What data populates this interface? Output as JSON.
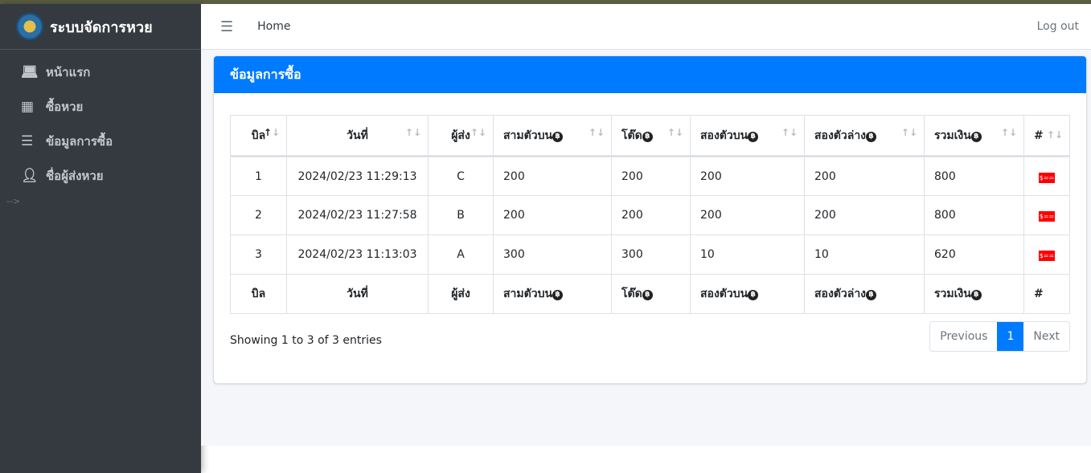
{
  "app": {
    "title": "ระบบจัดการหวย"
  },
  "sidebar": {
    "items": [
      {
        "label": "หน้าแรก",
        "icon": "laptop-icon"
      },
      {
        "label": "ซื้อหวย",
        "icon": "grid-icon"
      },
      {
        "label": "ข้อมูลการซื้อ",
        "icon": "list-icon"
      },
      {
        "label": "ชื่อผู้ส่งหวย",
        "icon": "user-graduate-icon"
      }
    ],
    "comment": "-->"
  },
  "navbar": {
    "home": "Home",
    "logout": "Log out"
  },
  "card": {
    "title": "ข้อมูลการซื้อ"
  },
  "table": {
    "columns": [
      "บิล",
      "วันที่",
      "ผู้ส่ง",
      "สามตัวบน",
      "โต๊ด",
      "สองตัวบน",
      "สองตัวล่าง",
      "รวมเงิน",
      "#"
    ],
    "rows": [
      [
        "1",
        "2024/02/23 11:29:13",
        "C",
        "200",
        "200",
        "200",
        "200",
        "800"
      ],
      [
        "2",
        "2024/02/23 11:27:58",
        "B",
        "200",
        "200",
        "200",
        "200",
        "800"
      ],
      [
        "3",
        "2024/02/23 11:13:03",
        "A",
        "300",
        "300",
        "10",
        "10",
        "620"
      ]
    ],
    "sorted_column": "บิล",
    "sort_dir": "asc"
  },
  "footer": {
    "info": "Showing 1 to 3 of 3 entries",
    "previous": "Previous",
    "page": "1",
    "next": "Next"
  },
  "colors": {
    "primary": "#007bff",
    "sidebar": "#343a40",
    "bill_icon": "#ff0000"
  }
}
